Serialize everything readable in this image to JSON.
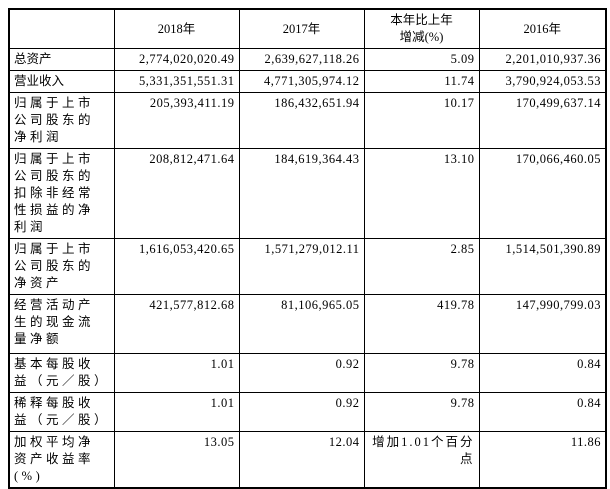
{
  "colors": {
    "background": "#ffffff",
    "border": "#000000",
    "text": "#000000"
  },
  "table": {
    "columns": {
      "col_label": "",
      "col_2018": "2018年",
      "col_2017": "2017年",
      "col_change_line1": "本年比上年",
      "col_change_line2": "增减(%)",
      "col_2016": "2016年"
    },
    "rows": [
      {
        "label": "总资产",
        "y2018": "2,774,020,020.49",
        "y2017": "2,639,627,118.26",
        "change": "5.09",
        "y2016": "2,201,010,937.36"
      },
      {
        "label": "营业收入",
        "y2018": "5,331,351,551.31",
        "y2017": "4,771,305,974.12",
        "change": "11.74",
        "y2016": "3,790,924,053.53"
      },
      {
        "label": "归属于上市公司股东的净利润",
        "y2018": "205,393,411.19",
        "y2017": "186,432,651.94",
        "change": "10.17",
        "y2016": "170,499,637.14"
      },
      {
        "label": "归属于上市公司股东的扣除非经常性损益的净利润",
        "y2018": "208,812,471.64",
        "y2017": "184,619,364.43",
        "change": "13.10",
        "y2016": "170,066,460.05"
      },
      {
        "label": "归属于上市公司股东的净资产",
        "y2018": "1,616,053,420.65",
        "y2017": "1,571,279,012.11",
        "change": "2.85",
        "y2016": "1,514,501,390.89"
      },
      {
        "label": "经营活动产生的现金流量净额",
        "y2018": "421,577,812.68",
        "y2017": "81,106,965.05",
        "change": "419.78",
        "y2016": "147,990,799.03"
      },
      {
        "label": "基本每股收益（元／股）",
        "y2018": "1.01",
        "y2017": "0.92",
        "change": "9.78",
        "y2016": "0.84"
      },
      {
        "label": "稀释每股收益（元／股）",
        "y2018": "1.01",
        "y2017": "0.92",
        "change": "9.78",
        "y2016": "0.84"
      },
      {
        "label": "加权平均净资产收益率(%)",
        "y2018": "13.05",
        "y2017": "12.04",
        "change": "增加1.01个百分点",
        "y2016": "11.86"
      }
    ]
  }
}
